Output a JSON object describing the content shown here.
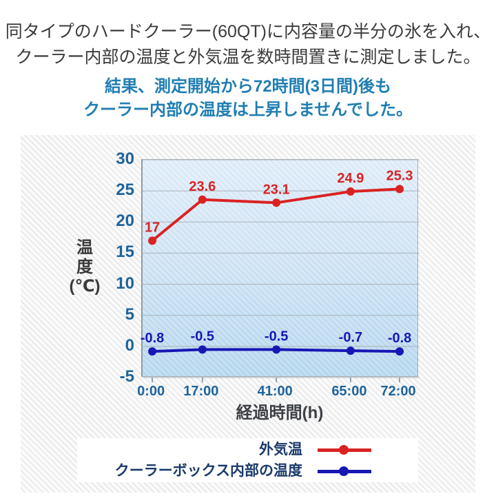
{
  "header": {
    "line1": "同タイプのハードクーラー(60QT)に内容量の半分の氷を入れ、",
    "line2": "クーラー内部の温度と外気温を数時間置きに測定しました。",
    "line3": "結果、測定開始から72時間(3日間)後も",
    "line4": "クーラー内部の温度は上昇しませんでした。"
  },
  "colors": {
    "header_text": "#3b3b3b",
    "header_accent": "#1f7eb2",
    "outside_temp_red": "#d92323",
    "cooler_temp_blue": "#1717b4",
    "axis_tick_blue": "#1e649c",
    "axis_title_dark": "#3d4045",
    "legend_text_navy": "#1a3a6b",
    "grid_line": "#a9b1b7",
    "x_tick_mark": "#8fa0ab",
    "plot_bg_top": "#dfedfa",
    "plot_bg_bottom": "#b2d6ee",
    "card_hatch": "#e9e9e9",
    "legend_bg": "#ffffff"
  },
  "chart_data": {
    "type": "line",
    "title": "",
    "xlabel": "経過時間(h)",
    "ylabel": "温度(℃)",
    "ylabel_lines": [
      "温",
      "度",
      "(℃)"
    ],
    "x_tick_labels": [
      "0:00",
      "17:00",
      "41:00",
      "65:00",
      "72:00"
    ],
    "x_hours": [
      0,
      17,
      41,
      65,
      72
    ],
    "x_positions_pct": [
      3.5,
      21.6,
      48.3,
      75.1,
      92.8
    ],
    "ylim": [
      -5,
      30
    ],
    "y_ticks": [
      30,
      25,
      20,
      15,
      10,
      5,
      0,
      -5
    ],
    "y_tick_labels": [
      "30",
      "25",
      "20",
      "15",
      "10",
      "5",
      "0",
      "-5"
    ],
    "grid": true,
    "legend_position": "bottom",
    "series": [
      {
        "name": "外気温",
        "color": "#d92323",
        "values": [
          17,
          23.6,
          23.1,
          24.9,
          25.3
        ],
        "labels": [
          "17",
          "23.6",
          "23.1",
          "24.9",
          "25.3"
        ]
      },
      {
        "name": "クーラーボックス内部の温度",
        "color": "#1717b4",
        "values": [
          -0.8,
          -0.5,
          -0.5,
          -0.7,
          -0.8
        ],
        "labels": [
          "-0.8",
          "-0.5",
          "-0.5",
          "-0.7",
          "-0.8"
        ]
      }
    ]
  }
}
